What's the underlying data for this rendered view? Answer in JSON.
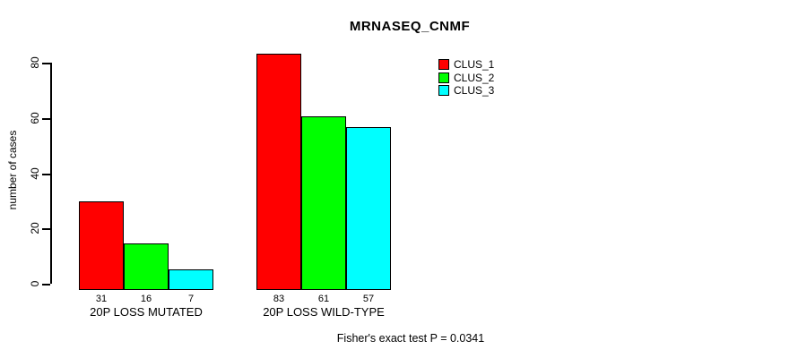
{
  "title": "MRNASEQ_CNMF",
  "footer": "Fisher's exact test P = 0.0341",
  "colors": {
    "clus_1": "#FF0000",
    "clus_2": "#00FF00",
    "clus_3": "#00FFFF",
    "axis": "#000000",
    "background": "#FFFFFF"
  },
  "chart_data": {
    "type": "bar",
    "title": "MRNASEQ_CNMF",
    "xlabel": "",
    "ylabel": "number of cases",
    "categories": [
      "20P LOSS MUTATED",
      "20P LOSS WILD-TYPE"
    ],
    "series": [
      {
        "name": "CLUS_1",
        "color": "#FF0000",
        "values": [
          31,
          83
        ]
      },
      {
        "name": "CLUS_2",
        "color": "#00FF00",
        "values": [
          16,
          61
        ]
      },
      {
        "name": "CLUS_3",
        "color": "#00FFFF",
        "values": [
          7,
          57
        ]
      }
    ],
    "bar_value_labels": [
      [
        31,
        16,
        7
      ],
      [
        83,
        61,
        57
      ]
    ],
    "yticks": [
      0,
      20,
      40,
      60,
      80
    ],
    "ylim": [
      0,
      83
    ],
    "grid": false,
    "legend_position": "top-right",
    "annotation": "Fisher's exact test P = 0.0341"
  }
}
